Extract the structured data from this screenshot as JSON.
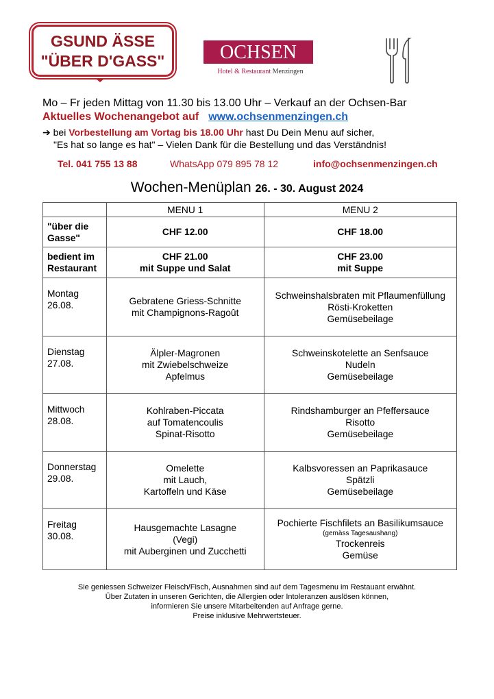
{
  "badge": {
    "line1": "GSUND ÄSSE",
    "line2": "\"ÜBER D'GASS\""
  },
  "logo": {
    "name": "OCHSEN",
    "sub_a": "Hotel & Restaurant",
    "sub_b": "Menzingen"
  },
  "intro": {
    "hours": "Mo – Fr jeden Mittag von 11.30 bis 13.00 Uhr – Verkauf an der Ochsen-Bar",
    "offer": "Aktuelles Wochenangebot auf",
    "url": "www.ochsenmenzingen.ch",
    "pre": "bei",
    "pre_bold": "Vorbestellung am Vortag bis 18.00 Uhr",
    "pre_rest": "hast Du Dein Menu auf sicher,",
    "thanks": "\"Es hat so lange es hat\" – Vielen Dank für die Bestellung und das Verständnis!"
  },
  "contact": {
    "tel": "Tel.  041 755 13 88",
    "whatsapp": "WhatsApp 079 895 78 12",
    "email": "info@ochsenmenzingen.ch"
  },
  "title": {
    "main": "Wochen-Menüplan",
    "dates": "26. - 30. August 2024"
  },
  "table": {
    "headers": [
      "MENU 1",
      "MENU 2"
    ],
    "prices": [
      {
        "label": "\"über die Gasse\"",
        "m1": [
          "CHF 12.00"
        ],
        "m2": [
          "CHF 18.00"
        ]
      },
      {
        "label": "bedient im Restaurant",
        "m1": [
          "CHF 21.00",
          "mit Suppe und Salat"
        ],
        "m2": [
          "CHF 23.00",
          "mit Suppe"
        ]
      }
    ],
    "days": [
      {
        "day": "Montag",
        "date": "26.08.",
        "m1": [
          "Gebratene Griess-Schnitte",
          "mit Champignons-Ragoût"
        ],
        "m2": [
          "Schweinshalsbraten mit Pflaumenfüllung",
          "Rösti-Kroketten",
          "Gemüsebeilage"
        ]
      },
      {
        "day": "Dienstag",
        "date": "27.08.",
        "m1": [
          "Älpler-Magronen",
          "mit Zwiebelschweize",
          "Apfelmus"
        ],
        "m2": [
          "Schweinskotelette an Senfsauce",
          "Nudeln",
          "Gemüsebeilage"
        ]
      },
      {
        "day": "Mittwoch",
        "date": "28.08.",
        "m1": [
          "Kohlraben-Piccata",
          "auf Tomatencoulis",
          "Spinat-Risotto"
        ],
        "m2": [
          "Rindshamburger an Pfeffersauce",
          "Risotto",
          "Gemüsebeilage"
        ]
      },
      {
        "day": "Donnerstag",
        "date": "29.08.",
        "m1": [
          "Omelette",
          "mit Lauch,",
          "Kartoffeln und Käse"
        ],
        "m2": [
          "Kalbsvoressen an Paprikasauce",
          "Spätzli",
          "Gemüsebeilage"
        ]
      },
      {
        "day": "Freitag",
        "date": "30.08.",
        "m1": [
          "Hausgemachte Lasagne",
          "(Vegi)",
          "mit Auberginen und Zucchetti"
        ],
        "m2": [
          "Pochierte Fischfilets an Basilikumsauce",
          "(gemäss Tagesaushang)",
          "Trockenreis",
          "Gemüse"
        ]
      }
    ]
  },
  "footer": [
    "Sie geniessen Schweizer Fleisch/Fisch, Ausnahmen sind auf dem Tagesmenu im Restauant erwähnt.",
    "Über Zutaten in unseren Gerichten, die Allergien oder Intoleranzen auslösen können,",
    "informieren Sie unsere Mitarbeitenden auf Anfrage gerne.",
    "Preise inklusive Mehrwertsteuer."
  ]
}
